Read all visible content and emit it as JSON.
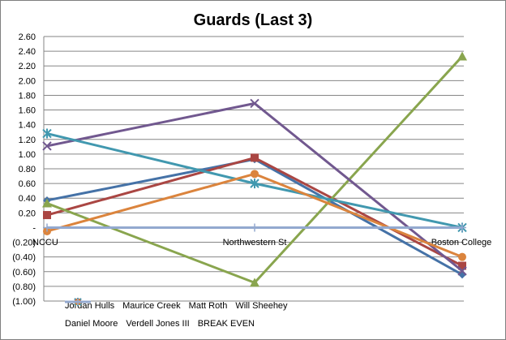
{
  "chart_data": {
    "type": "line",
    "title": "Guards (Last 3)",
    "categories": [
      "NCCU",
      "Northwestern St",
      "Boston College"
    ],
    "y_tick_labels": [
      "2.60",
      "2.40",
      "2.20",
      "2.00",
      "1.80",
      "1.60",
      "1.40",
      "1.20",
      "1.00",
      "0.80",
      "0.60",
      "0.40",
      "0.20",
      "-",
      "(0.20)",
      "(0.40)",
      "(0.60)",
      "(0.80)",
      "(1.00)"
    ],
    "ylim": [
      -1.0,
      2.6
    ],
    "grid": true,
    "legend_position": "bottom",
    "series": [
      {
        "name": "Jordan Hulls",
        "values": [
          0.37,
          0.93,
          -0.64
        ],
        "color": "#4572a7",
        "marker": "diamond"
      },
      {
        "name": "Maurice Creek",
        "values": [
          0.17,
          0.95,
          -0.52
        ],
        "color": "#aa4643",
        "marker": "square"
      },
      {
        "name": "Matt Roth",
        "values": [
          0.33,
          -0.75,
          2.33
        ],
        "color": "#89a54e",
        "marker": "triangle"
      },
      {
        "name": "Will Sheehey",
        "values": [
          1.11,
          1.69,
          -0.59
        ],
        "color": "#71588f",
        "marker": "x"
      },
      {
        "name": "Daniel Moore",
        "values": [
          1.28,
          0.6,
          0.0
        ],
        "color": "#4198af",
        "marker": "star"
      },
      {
        "name": "Verdell Jones III",
        "values": [
          -0.05,
          0.73,
          -0.4
        ],
        "color": "#db843d",
        "marker": "circle"
      },
      {
        "name": "BREAK EVEN",
        "values": [
          0,
          0,
          0
        ],
        "color": "#93a9cf",
        "marker": "plus"
      }
    ]
  }
}
